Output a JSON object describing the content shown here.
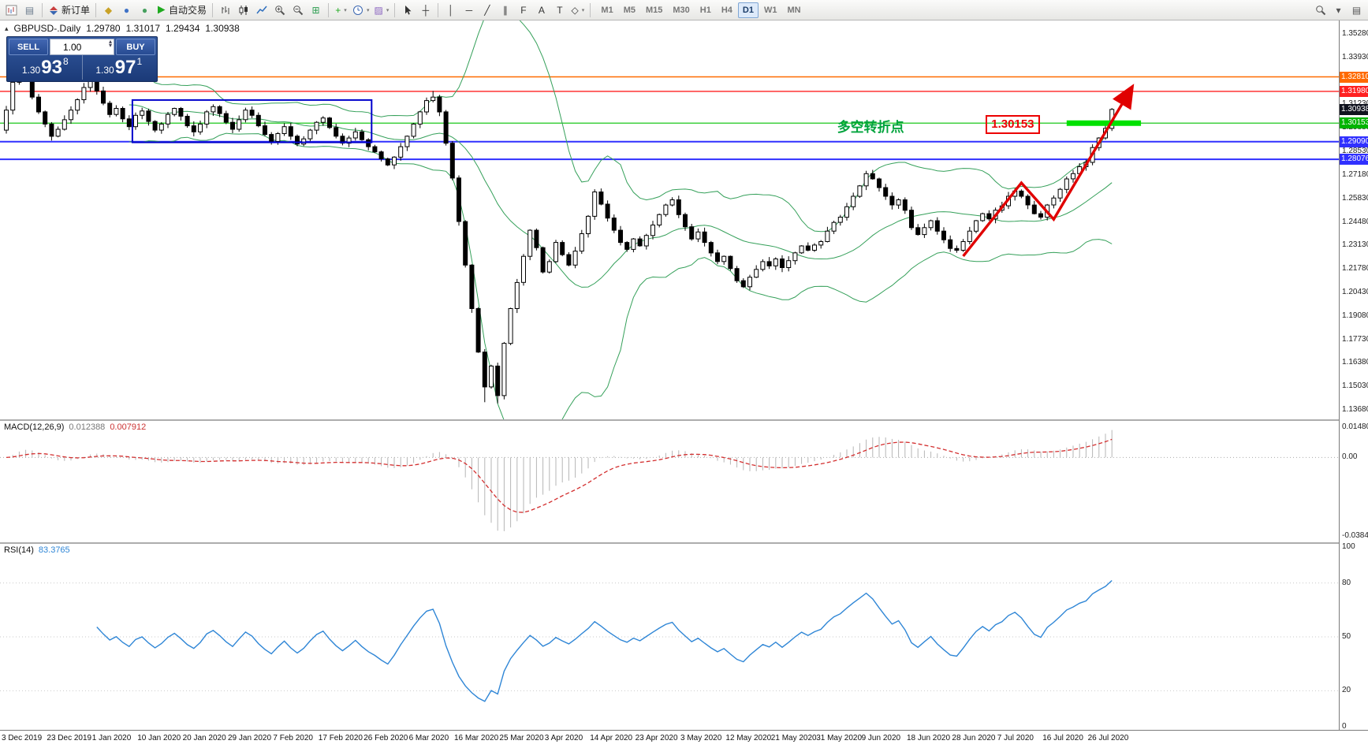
{
  "toolbar": {
    "items": [
      {
        "type": "icon",
        "name": "new-chart-icon",
        "icon": "chart-new"
      },
      {
        "type": "icon",
        "name": "profiles-icon",
        "glyph": "▤",
        "color": "#6b7b8d"
      },
      {
        "type": "sep"
      },
      {
        "type": "button",
        "name": "new-order-button",
        "icon": "order",
        "label": "新订单"
      },
      {
        "type": "sep"
      },
      {
        "type": "icon",
        "name": "alerts-icon",
        "glyph": "◆",
        "color": "#c9a227"
      },
      {
        "type": "icon",
        "name": "mql-community-icon",
        "glyph": "●",
        "color": "#3f72c6"
      },
      {
        "type": "icon",
        "name": "market-icon",
        "glyph": "●",
        "color": "#46a05e"
      },
      {
        "type": "button",
        "name": "auto-trading-button",
        "icon": "play",
        "label": "自动交易"
      },
      {
        "type": "sep"
      },
      {
        "type": "icon",
        "name": "bar-chart-icon",
        "icon": "bars"
      },
      {
        "type": "icon",
        "name": "candlestick-chart-icon",
        "icon": "candles"
      },
      {
        "type": "icon",
        "name": "line-chart-icon",
        "icon": "line"
      },
      {
        "type": "icon",
        "name": "zoom-in-icon",
        "icon": "zoom-in"
      },
      {
        "type": "icon",
        "name": "zoom-out-icon",
        "icon": "zoom-out"
      },
      {
        "type": "icon",
        "name": "tile-windows-icon",
        "glyph": "⊞",
        "color": "#2e9e52"
      },
      {
        "type": "sep"
      },
      {
        "type": "icon",
        "name": "indicators-icon",
        "glyph": "+",
        "color": "#1faa1f",
        "dropdown": true
      },
      {
        "type": "icon",
        "name": "periods-icon",
        "icon": "clock",
        "dropdown": true
      },
      {
        "type": "icon",
        "name": "templates-icon",
        "glyph": "▨",
        "color": "#8a64c0",
        "dropdown": true
      },
      {
        "type": "sep"
      },
      {
        "type": "icon",
        "name": "cursor-icon",
        "icon": "cursor"
      },
      {
        "type": "icon",
        "name": "crosshair-icon",
        "glyph": "┼",
        "color": "#333333"
      },
      {
        "type": "sep"
      },
      {
        "type": "icon",
        "name": "vertical-line-icon",
        "glyph": "│",
        "color": "#333333"
      },
      {
        "type": "icon",
        "name": "horizontal-line-icon",
        "glyph": "─",
        "color": "#333333"
      },
      {
        "type": "icon",
        "name": "trendline-icon",
        "glyph": "╱",
        "color": "#333333"
      },
      {
        "type": "icon",
        "name": "channel-icon",
        "glyph": "∥",
        "color": "#333333"
      },
      {
        "type": "icon",
        "name": "fibonacci-icon",
        "glyph": "F",
        "color": "#333333"
      },
      {
        "type": "icon",
        "name": "text-icon",
        "glyph": "A",
        "color": "#333333"
      },
      {
        "type": "icon",
        "name": "label-icon",
        "glyph": "T",
        "color": "#333333"
      },
      {
        "type": "icon",
        "name": "shapes-icon",
        "glyph": "◇",
        "color": "#333333",
        "dropdown": true
      },
      {
        "type": "sep"
      },
      {
        "type": "tf-group"
      },
      {
        "type": "spacer"
      },
      {
        "type": "icon",
        "name": "search-icon",
        "icon": "zoom"
      },
      {
        "type": "icon",
        "name": "quick-toolbar-icon",
        "glyph": "▾",
        "color": "#555555"
      },
      {
        "type": "icon",
        "name": "panels-icon",
        "glyph": "▤",
        "color": "#555555"
      }
    ],
    "timeframes": {
      "options": [
        "M1",
        "M5",
        "M15",
        "M30",
        "H1",
        "H4",
        "D1",
        "W1",
        "MN"
      ],
      "active": "D1"
    }
  },
  "chart": {
    "symbol_period": "GBPUSD-.Daily",
    "ohlc": {
      "open": "1.29780",
      "high": "1.31017",
      "low": "1.29434",
      "close": "1.30938"
    }
  },
  "trade_panel": {
    "sell_label": "SELL",
    "buy_label": "BUY",
    "volume": "1.00",
    "bid": {
      "prefix": "1.30",
      "big": "93",
      "sup": "8"
    },
    "ask": {
      "prefix": "1.30",
      "big": "97",
      "sup": "1"
    }
  },
  "price_axis": {
    "labels": [
      "1.35280",
      "1.33930",
      "1.32580",
      "1.31230",
      "1.29880",
      "1.28530",
      "1.27180",
      "1.25830",
      "1.24480",
      "1.23130",
      "1.21780",
      "1.20430",
      "1.19080",
      "1.17730",
      "1.16380",
      "1.15030",
      "1.13680"
    ],
    "tags": [
      {
        "text": "1.32810",
        "price": 1.3281,
        "bg": "#ff6a00"
      },
      {
        "text": "1.31980",
        "price": 1.3198,
        "bg": "#ff2020"
      },
      {
        "text": "1.30938",
        "price": 1.30938,
        "bg": "#10131f"
      },
      {
        "text": "1.30153",
        "price": 1.30153,
        "bg": "#00b400"
      },
      {
        "text": "1.29090",
        "price": 1.2909,
        "bg": "#3030ff"
      },
      {
        "text": "1.28076",
        "price": 1.28076,
        "bg": "#3030ff"
      }
    ]
  },
  "date_axis": {
    "labels": [
      "3 Dec 2019",
      "23 Dec 2019",
      "1 Jan 2020",
      "10 Jan 2020",
      "20 Jan 2020",
      "29 Jan 2020",
      "7 Feb 2020",
      "17 Feb 2020",
      "26 Feb 2020",
      "6 Mar 2020",
      "16 Mar 2020",
      "25 Mar 2020",
      "3 Apr 2020",
      "14 Apr 2020",
      "23 Apr 2020",
      "3 May 2020",
      "12 May 2020",
      "21 May 2020",
      "31 May 2020",
      "9 Jun 2020",
      "18 Jun 2020",
      "28 Jun 2020",
      "7 Jul 2020",
      "16 Jul 2020",
      "26 Jul 2020"
    ]
  },
  "indicators": {
    "macd": {
      "label": "MACD(12,26,9)",
      "value_main": "0.012388",
      "value_signal": "0.007912",
      "axis": [
        {
          "text": "0.014807",
          "v": 0.014807
        },
        {
          "text": "0.00",
          "v": 0
        },
        {
          "text": "-0.038415",
          "v": -0.038415
        }
      ]
    },
    "rsi": {
      "label": "RSI(14)",
      "value": "83.3765",
      "axis": [
        {
          "text": "100",
          "v": 100
        },
        {
          "text": "80",
          "v": 80
        },
        {
          "text": "50",
          "v": 50
        },
        {
          "text": "20",
          "v": 20
        },
        {
          "text": "0",
          "v": 0
        }
      ],
      "levels": [
        80,
        50,
        20
      ]
    }
  },
  "chart_data": {
    "type": "candlestick",
    "symbol": "GBPUSD-.",
    "period": "Daily",
    "first_open": 1.2975,
    "closes": [
      1.309,
      1.325,
      1.333,
      1.328,
      1.3165,
      1.308,
      1.301,
      1.294,
      1.298,
      1.3035,
      1.309,
      1.315,
      1.322,
      1.3255,
      1.32,
      1.313,
      1.3065,
      1.31,
      1.304,
      1.2995,
      1.306,
      1.3085,
      1.3025,
      1.2975,
      1.301,
      1.3065,
      1.31,
      1.3055,
      1.3,
      1.2965,
      1.301,
      1.308,
      1.311,
      1.307,
      1.302,
      1.298,
      1.3035,
      1.309,
      1.306,
      1.3,
      1.295,
      1.291,
      1.2955,
      1.2995,
      1.294,
      1.2895,
      1.2925,
      1.2975,
      1.302,
      1.3045,
      1.299,
      1.294,
      1.29,
      1.293,
      1.2965,
      1.292,
      1.288,
      1.285,
      1.281,
      1.2775,
      1.282,
      1.288,
      1.294,
      1.301,
      1.308,
      1.3145,
      1.3165,
      1.308,
      1.29,
      1.27,
      1.245,
      1.22,
      1.195,
      1.17,
      1.15,
      1.162,
      1.145,
      1.175,
      1.195,
      1.21,
      1.225,
      1.24,
      1.23,
      1.216,
      1.222,
      1.233,
      1.226,
      1.22,
      1.228,
      1.238,
      1.248,
      1.262,
      1.255,
      1.247,
      1.24,
      1.233,
      1.229,
      1.235,
      1.231,
      1.237,
      1.243,
      1.249,
      1.2545,
      1.2575,
      1.249,
      1.242,
      1.235,
      1.239,
      1.233,
      1.227,
      1.222,
      1.225,
      1.218,
      1.211,
      1.2075,
      1.213,
      1.2175,
      1.222,
      1.2195,
      1.2235,
      1.2185,
      1.2225,
      1.227,
      1.231,
      1.2285,
      1.2315,
      1.2335,
      1.2395,
      1.2445,
      1.2475,
      1.2535,
      1.2595,
      1.2655,
      1.2725,
      1.2695,
      1.2645,
      1.2595,
      1.2545,
      1.2575,
      1.2515,
      1.2415,
      1.2375,
      1.2415,
      1.2455,
      1.2395,
      1.2345,
      1.2295,
      1.2285,
      1.2335,
      1.2395,
      1.2455,
      1.2495,
      1.2465,
      1.2515,
      1.254,
      1.2595,
      1.2625,
      1.2595,
      1.2545,
      1.2495,
      1.2475,
      1.2545,
      1.2585,
      1.2635,
      1.2695,
      1.2725,
      1.2765,
      1.279,
      1.2875,
      1.293,
      1.2985,
      1.3094
    ],
    "wick_overrides": {
      "highs": {
        "2": 1.3355,
        "66": 1.32,
        "171": 1.3102
      },
      "lows": {
        "74": 1.1412,
        "76": 1.1405,
        "114": 1.2068
      }
    },
    "bollinger": {
      "period": 20,
      "deviation": 2
    },
    "macd": {
      "fast": 12,
      "slow": 26,
      "signal": 9
    },
    "rsi_period": 14,
    "ylim": [
      1.1368,
      1.3528
    ],
    "hlines": [
      {
        "price": 1.3281,
        "color": "#ff6a00",
        "width": 1.4,
        "label": "1.32810"
      },
      {
        "price": 1.3198,
        "color": "#ff2020",
        "width": 1.4,
        "label": "1.31980"
      },
      {
        "price": 1.30153,
        "color": "#00c000",
        "width": 1.2,
        "label": "1.30153"
      },
      {
        "price": 1.2909,
        "color": "#3030ff",
        "width": 2,
        "label": "1.29090"
      },
      {
        "price": 1.28076,
        "color": "#3030ff",
        "width": 2,
        "label": "1.28076"
      }
    ],
    "annotations": {
      "rectangle": {
        "i1": 19.5,
        "i2": 56.5,
        "p1": 1.3148,
        "p2": 1.2905,
        "color": "#0000cc"
      },
      "zigzag": {
        "color": "#e00000",
        "points": [
          {
            "i": 148,
            "p": 1.2251
          },
          {
            "i": 157,
            "p": 1.2672
          },
          {
            "i": 162,
            "p": 1.2463
          },
          {
            "i": 174,
            "p": 1.3215
          }
        ]
      },
      "green_segment": {
        "price": 1.30153,
        "i1": 164,
        "i2": 175.5,
        "color": "#00e100"
      },
      "turning_point": {
        "text": "多空转折点",
        "i": 128.5,
        "p": 1.3005,
        "color": "#00a33c"
      },
      "price_callout": {
        "text": "1.30153",
        "i": 151.5,
        "p": 1.3005,
        "color": "#ec0000"
      }
    }
  }
}
